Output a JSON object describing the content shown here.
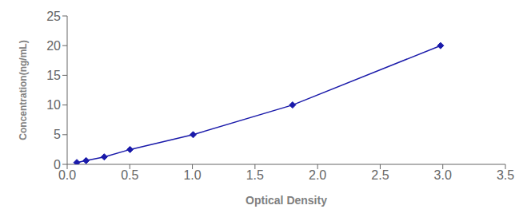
{
  "chart_data": {
    "type": "line",
    "xlabel": "Optical Density",
    "ylabel": "Concentration(ng/mL)",
    "x": [
      0.077,
      0.151,
      0.296,
      0.502,
      1.006,
      1.8,
      2.982
    ],
    "values": [
      0.31,
      0.63,
      1.25,
      2.5,
      5.0,
      10.0,
      20.0
    ],
    "color": "#1a1aaa",
    "marker": "diamond",
    "xlim": [
      0,
      3.5
    ],
    "ylim": [
      0,
      25
    ],
    "xticks": [
      {
        "value": 0,
        "label": "0.0"
      },
      0.5,
      {
        "value": 1,
        "label": "1.0"
      },
      1.5,
      {
        "value": 2,
        "label": "2.0"
      },
      2.5,
      {
        "value": 3,
        "label": "3.0"
      },
      3.5
    ],
    "yticks": [
      0,
      5,
      10,
      15,
      20,
      25
    ]
  }
}
